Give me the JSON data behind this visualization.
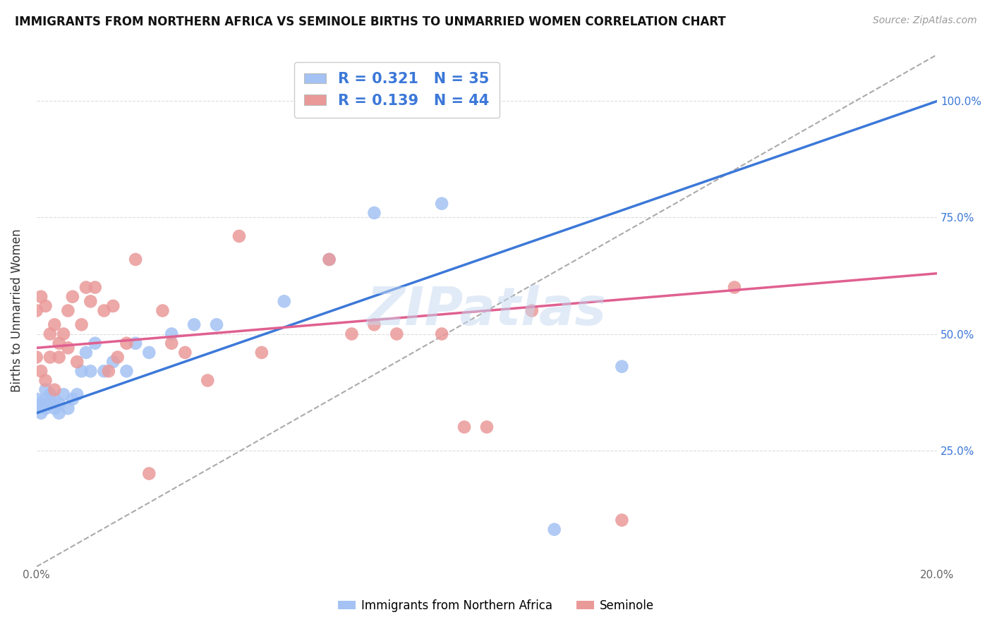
{
  "title": "IMMIGRANTS FROM NORTHERN AFRICA VS SEMINOLE BIRTHS TO UNMARRIED WOMEN CORRELATION CHART",
  "source": "Source: ZipAtlas.com",
  "ylabel": "Births to Unmarried Women",
  "blue_R": 0.321,
  "blue_N": 35,
  "pink_R": 0.139,
  "pink_N": 44,
  "blue_color": "#a4c2f4",
  "pink_color": "#ea9999",
  "blue_line_color": "#3c78d8",
  "pink_line_color": "#e06090",
  "dashed_line_color": "#aaaaaa",
  "right_tick_color": "#3c78d8",
  "xlim_min": 0.0,
  "xlim_max": 0.2,
  "ylim_min": 0.0,
  "ylim_max": 1.1,
  "blue_line_x0": 0.0,
  "blue_line_y0": 0.33,
  "blue_line_x1": 0.2,
  "blue_line_y1": 1.0,
  "pink_line_x0": 0.0,
  "pink_line_y0": 0.47,
  "pink_line_x1": 0.2,
  "pink_line_y1": 0.63,
  "blue_scatter_x": [
    0.0,
    0.0,
    0.001,
    0.001,
    0.002,
    0.002,
    0.002,
    0.003,
    0.003,
    0.004,
    0.004,
    0.005,
    0.005,
    0.006,
    0.007,
    0.008,
    0.009,
    0.01,
    0.011,
    0.012,
    0.013,
    0.015,
    0.017,
    0.02,
    0.022,
    0.025,
    0.03,
    0.035,
    0.04,
    0.055,
    0.065,
    0.075,
    0.09,
    0.115,
    0.13
  ],
  "blue_scatter_y": [
    0.34,
    0.36,
    0.33,
    0.35,
    0.34,
    0.36,
    0.38,
    0.35,
    0.37,
    0.34,
    0.36,
    0.33,
    0.35,
    0.37,
    0.34,
    0.36,
    0.37,
    0.42,
    0.46,
    0.42,
    0.48,
    0.42,
    0.44,
    0.42,
    0.48,
    0.46,
    0.5,
    0.52,
    0.52,
    0.57,
    0.66,
    0.76,
    0.78,
    0.08,
    0.43
  ],
  "pink_scatter_x": [
    0.0,
    0.0,
    0.001,
    0.001,
    0.002,
    0.002,
    0.003,
    0.003,
    0.004,
    0.004,
    0.005,
    0.005,
    0.006,
    0.007,
    0.007,
    0.008,
    0.009,
    0.01,
    0.011,
    0.012,
    0.013,
    0.015,
    0.016,
    0.017,
    0.018,
    0.02,
    0.022,
    0.025,
    0.028,
    0.03,
    0.033,
    0.038,
    0.045,
    0.05,
    0.065,
    0.07,
    0.075,
    0.08,
    0.09,
    0.095,
    0.1,
    0.11,
    0.13,
    0.155
  ],
  "pink_scatter_y": [
    0.45,
    0.55,
    0.42,
    0.58,
    0.4,
    0.56,
    0.45,
    0.5,
    0.38,
    0.52,
    0.45,
    0.48,
    0.5,
    0.47,
    0.55,
    0.58,
    0.44,
    0.52,
    0.6,
    0.57,
    0.6,
    0.55,
    0.42,
    0.56,
    0.45,
    0.48,
    0.66,
    0.2,
    0.55,
    0.48,
    0.46,
    0.4,
    0.71,
    0.46,
    0.66,
    0.5,
    0.52,
    0.5,
    0.5,
    0.3,
    0.3,
    0.55,
    0.1,
    0.6
  ]
}
